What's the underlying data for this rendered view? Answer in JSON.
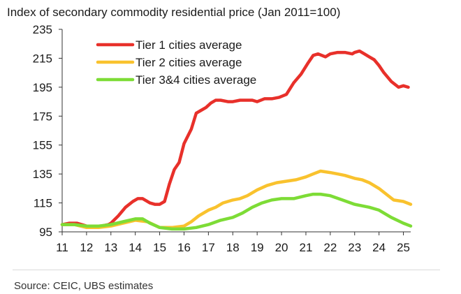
{
  "chart_data": {
    "type": "line",
    "title": "Index of secondary commodity residential price (Jan 2011=100)",
    "xlabel": "",
    "ylabel": "",
    "xlim": [
      11,
      25.3
    ],
    "ylim": [
      95,
      235
    ],
    "yticks": [
      95,
      115,
      135,
      155,
      175,
      195,
      215,
      235
    ],
    "xticks": [
      11,
      12,
      13,
      14,
      15,
      16,
      17,
      18,
      19,
      20,
      21,
      22,
      23,
      24,
      25
    ],
    "xtick_labels": [
      "11",
      "12",
      "13",
      "14",
      "15",
      "16",
      "17",
      "18",
      "19",
      "20",
      "21",
      "22",
      "23",
      "24",
      "25"
    ],
    "legend_position": "top-left",
    "series": [
      {
        "name": "Tier 1 cities average",
        "color": "#e8302a",
        "x": [
          11.0,
          11.3,
          11.6,
          11.8,
          12.0,
          12.3,
          12.6,
          12.9,
          13.0,
          13.3,
          13.6,
          13.9,
          14.1,
          14.3,
          14.6,
          14.8,
          15.0,
          15.2,
          15.4,
          15.6,
          15.8,
          16.0,
          16.3,
          16.5,
          16.7,
          16.9,
          17.1,
          17.3,
          17.5,
          17.8,
          18.0,
          18.3,
          18.5,
          18.8,
          19.0,
          19.3,
          19.6,
          19.9,
          20.2,
          20.5,
          20.8,
          21.1,
          21.3,
          21.5,
          21.8,
          22.0,
          22.3,
          22.6,
          22.9,
          23.0,
          23.2,
          23.4,
          23.6,
          23.8,
          24.0,
          24.2,
          24.5,
          24.8,
          25.0,
          25.2
        ],
        "values": [
          100,
          101,
          101,
          100,
          99,
          99,
          99,
          100,
          101,
          106,
          112,
          116,
          118,
          118,
          115,
          114,
          114,
          116,
          128,
          138,
          143,
          156,
          166,
          177,
          179,
          181,
          184,
          186,
          186,
          185,
          185,
          186,
          186,
          186,
          185,
          187,
          187,
          188,
          190,
          198,
          204,
          212,
          217,
          218,
          216,
          218,
          219,
          219,
          218,
          219,
          220,
          218,
          216,
          214,
          210,
          205,
          199,
          195,
          196,
          195
        ]
      },
      {
        "name": "Tier 2 cities average",
        "color": "#f9c22e",
        "x": [
          11.0,
          11.5,
          12.0,
          12.5,
          13.0,
          13.5,
          14.0,
          14.5,
          15.0,
          15.5,
          16.0,
          16.3,
          16.6,
          17.0,
          17.3,
          17.6,
          18.0,
          18.3,
          18.6,
          19.0,
          19.4,
          19.8,
          20.2,
          20.6,
          21.0,
          21.3,
          21.6,
          22.0,
          22.3,
          22.6,
          23.0,
          23.3,
          23.6,
          24.0,
          24.3,
          24.6,
          25.0,
          25.3
        ],
        "values": [
          100,
          100,
          98,
          98,
          99,
          101,
          103,
          102,
          98,
          98,
          99,
          102,
          106,
          110,
          112,
          115,
          117,
          118,
          120,
          124,
          127,
          129,
          130,
          131,
          133,
          135,
          137,
          136,
          135,
          134,
          132,
          131,
          129,
          125,
          121,
          117,
          116,
          114
        ]
      },
      {
        "name": "Tier 3&4 cities average",
        "color": "#7ddc36",
        "x": [
          11.0,
          11.5,
          12.0,
          12.5,
          13.0,
          13.5,
          14.0,
          14.3,
          14.6,
          15.0,
          15.5,
          16.0,
          16.5,
          17.0,
          17.5,
          18.0,
          18.4,
          18.8,
          19.2,
          19.6,
          20.0,
          20.5,
          21.0,
          21.3,
          21.6,
          22.0,
          22.5,
          23.0,
          23.3,
          23.6,
          24.0,
          24.5,
          25.0,
          25.3
        ],
        "values": [
          100,
          100,
          99,
          99,
          100,
          102,
          104,
          104,
          101,
          98,
          97,
          97,
          98,
          100,
          103,
          105,
          108,
          112,
          115,
          117,
          118,
          118,
          120,
          121,
          121,
          120,
          117,
          114,
          113,
          112,
          110,
          105,
          101,
          99
        ]
      }
    ]
  },
  "footer": {
    "source": "Source: CEIC, UBS estimates"
  }
}
